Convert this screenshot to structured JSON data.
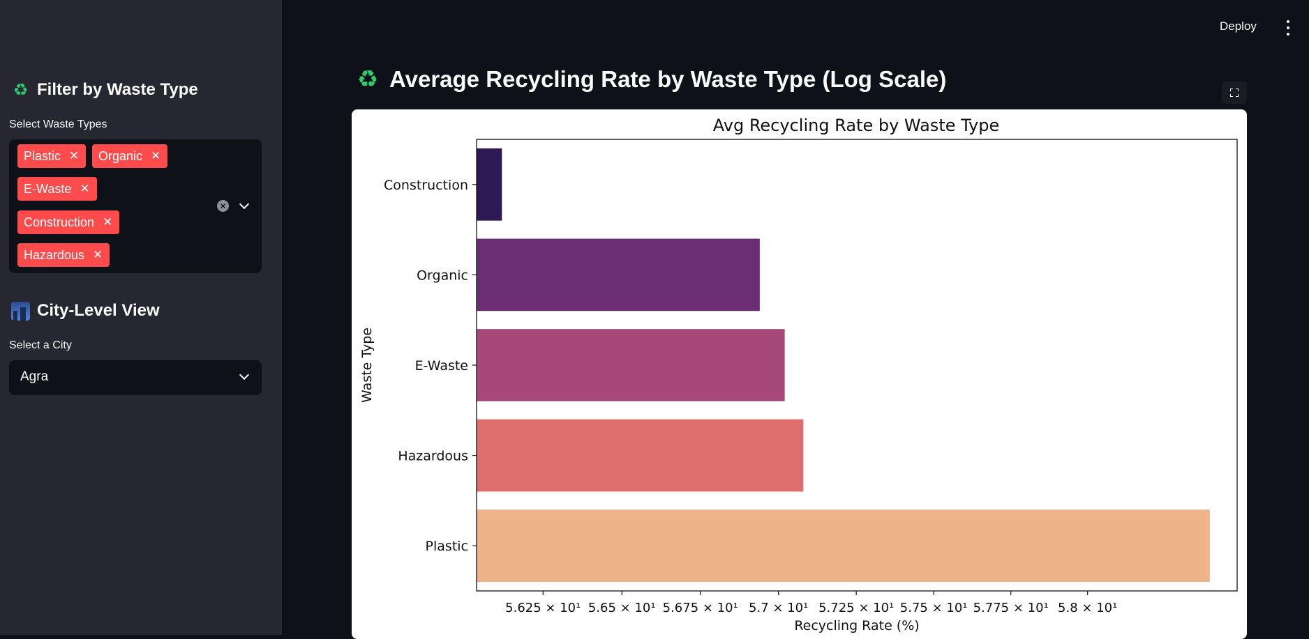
{
  "app": {
    "deploy_label": "Deploy",
    "menu_icon": "kebab-menu-icon"
  },
  "sidebar": {
    "filter_section": {
      "icon": "recycle-icon",
      "title": "Filter by Waste Type",
      "label": "Select Waste Types",
      "selected": [
        "Plastic",
        "Organic",
        "E-Waste",
        "Construction",
        "Hazardous"
      ],
      "chip_color": "#ff4b4b"
    },
    "city_section": {
      "icon": "cityscape-icon",
      "title": "City-Level View",
      "label": "Select a City",
      "selected_city": "Agra"
    }
  },
  "main": {
    "title_icon": "recycle-icon",
    "title": "Average Recycling Rate by Waste Type (Log Scale)"
  },
  "chart_data": {
    "type": "bar",
    "orientation": "horizontal",
    "title": "Avg Recycling Rate by Waste Type",
    "xlabel": "Recycling Rate (%)",
    "ylabel": "Waste Type",
    "x_scale": "log",
    "xlim": [
      56.04,
      58.49
    ],
    "categories": [
      "Construction",
      "Organic",
      "E-Waste",
      "Hazardous",
      "Plastic"
    ],
    "values": [
      56.12,
      56.94,
      57.02,
      57.08,
      58.4
    ],
    "colors": [
      "#2d1a54",
      "#6b2d74",
      "#a64878",
      "#df6f6f",
      "#eeb389"
    ],
    "ticks": [
      56.25,
      56.5,
      56.75,
      57.0,
      57.25,
      57.5,
      57.75,
      58.0
    ],
    "tick_labels": [
      "5.625 × 10¹",
      "5.65 × 10¹",
      "5.675 × 10¹",
      "5.7 × 10¹",
      "5.725 × 10¹",
      "5.75 × 10¹",
      "5.775 × 10¹",
      "5.8 × 10¹"
    ],
    "grid": false,
    "legend": "none"
  }
}
